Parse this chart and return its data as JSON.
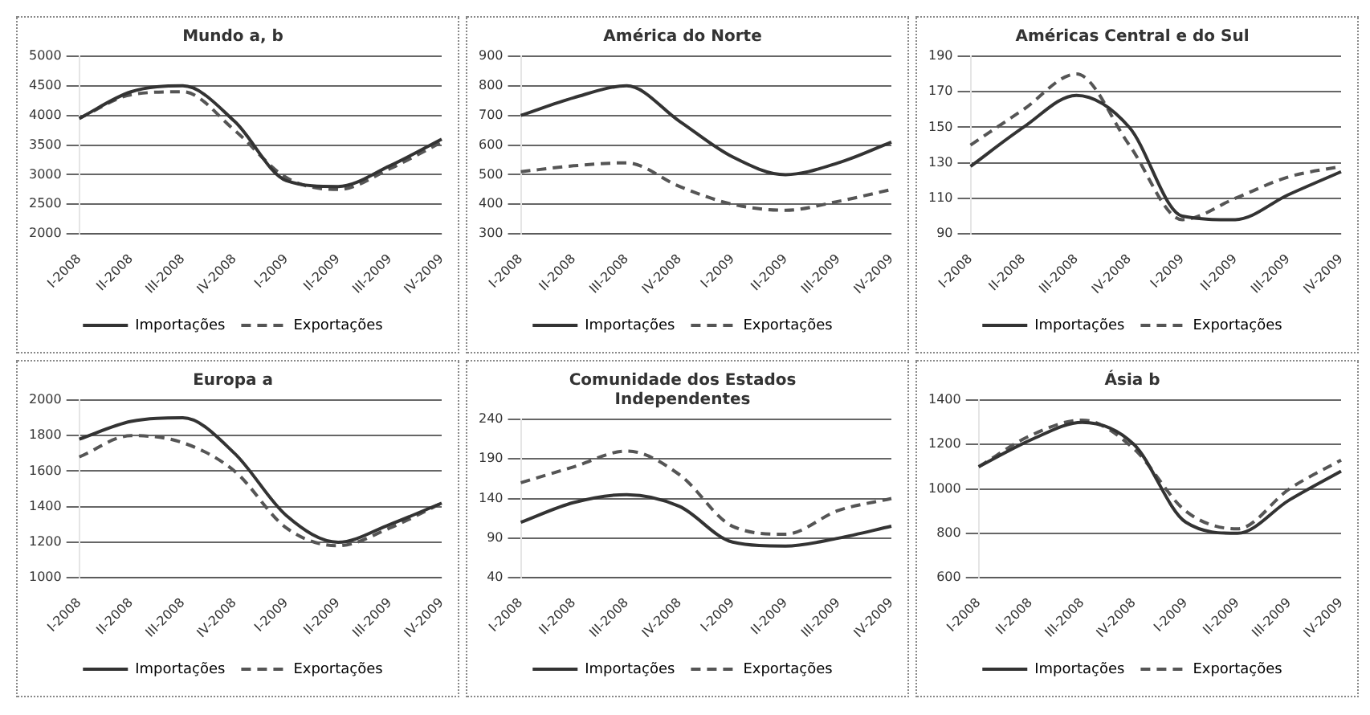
{
  "chart_data": [
    {
      "type": "line",
      "title": "Mundo a, b",
      "categories": [
        "I-2008",
        "II-2008",
        "III-2008",
        "IV-2008",
        "I-2009",
        "II-2009",
        "III-2009",
        "IV-2009"
      ],
      "series": [
        {
          "name": "Importações",
          "color": "#333333",
          "line_style": "solid",
          "values": [
            3950,
            4400,
            4500,
            3900,
            2900,
            2800,
            3150,
            3600
          ]
        },
        {
          "name": "Exportações",
          "color": "#555555",
          "line_style": "dashed",
          "values": [
            3950,
            4350,
            4400,
            3750,
            2950,
            2750,
            3100,
            3550
          ]
        }
      ],
      "ylim": [
        2000,
        5000
      ],
      "yticks": [
        2000,
        2500,
        3000,
        3500,
        4000,
        4500,
        5000
      ],
      "grid": "y",
      "legend": "bottom",
      "marker": "none"
    },
    {
      "type": "line",
      "title": "América do Norte",
      "categories": [
        "I-2008",
        "II-2008",
        "III-2008",
        "IV-2008",
        "I-2009",
        "II-2009",
        "III-2009",
        "IV-2009"
      ],
      "series": [
        {
          "name": "Importações",
          "color": "#333333",
          "line_style": "solid",
          "values": [
            700,
            760,
            800,
            680,
            560,
            500,
            540,
            610
          ]
        },
        {
          "name": "Exportações",
          "color": "#555555",
          "line_style": "dashed",
          "values": [
            510,
            530,
            540,
            460,
            400,
            380,
            410,
            450
          ]
        }
      ],
      "ylim": [
        300,
        900
      ],
      "yticks": [
        300,
        400,
        500,
        600,
        700,
        800,
        900
      ],
      "grid": "y",
      "legend": "bottom",
      "marker": "none"
    },
    {
      "type": "line",
      "title": "Américas Central e do Sul",
      "categories": [
        "I-2008",
        "II-2008",
        "III-2008",
        "IV-2008",
        "I-2009",
        "II-2009",
        "III-2009",
        "IV-2009"
      ],
      "series": [
        {
          "name": "Importações",
          "color": "#333333",
          "line_style": "solid",
          "values": [
            128,
            150,
            168,
            150,
            100,
            98,
            112,
            125
          ]
        },
        {
          "name": "Exportações",
          "color": "#555555",
          "line_style": "dashed",
          "values": [
            140,
            160,
            180,
            140,
            98,
            110,
            122,
            128
          ]
        }
      ],
      "ylim": [
        90,
        190
      ],
      "yticks": [
        90,
        110,
        130,
        150,
        170,
        190
      ],
      "grid": "y",
      "legend": "bottom",
      "marker": "none"
    },
    {
      "type": "line",
      "title": "Europa a",
      "categories": [
        "I-2008",
        "II-2008",
        "III-2008",
        "IV-2008",
        "I-2009",
        "II-2009",
        "III-2009",
        "IV-2009"
      ],
      "series": [
        {
          "name": "Importações",
          "color": "#333333",
          "line_style": "solid",
          "values": [
            1780,
            1880,
            1900,
            1700,
            1350,
            1200,
            1300,
            1420
          ]
        },
        {
          "name": "Exportações",
          "color": "#555555",
          "line_style": "dashed",
          "values": [
            1680,
            1800,
            1760,
            1600,
            1280,
            1180,
            1280,
            1420
          ]
        }
      ],
      "ylim": [
        1000,
        2000
      ],
      "yticks": [
        1000,
        1200,
        1400,
        1600,
        1800,
        2000
      ],
      "grid": "y",
      "legend": "bottom",
      "marker": "none"
    },
    {
      "type": "line",
      "title": "Comunidade dos Estados Independentes",
      "categories": [
        "I-2008",
        "II-2008",
        "III-2008",
        "IV-2008",
        "I-2009",
        "II-2009",
        "III-2009",
        "IV-2009"
      ],
      "series": [
        {
          "name": "Importações",
          "color": "#333333",
          "line_style": "solid",
          "values": [
            110,
            135,
            145,
            130,
            85,
            80,
            90,
            105
          ]
        },
        {
          "name": "Exportações",
          "color": "#555555",
          "line_style": "dashed",
          "values": [
            160,
            180,
            200,
            170,
            105,
            95,
            125,
            140
          ]
        }
      ],
      "ylim": [
        40,
        240
      ],
      "yticks": [
        40,
        90,
        140,
        190,
        240
      ],
      "grid": "y",
      "legend": "bottom",
      "marker": "none"
    },
    {
      "type": "line",
      "title": "Ásia b",
      "categories": [
        "I-2008",
        "II-2008",
        "III-2008",
        "IV-2008",
        "I-2009",
        "II-2009",
        "III-2009",
        "IV-2009"
      ],
      "series": [
        {
          "name": "Importações",
          "color": "#333333",
          "line_style": "solid",
          "values": [
            1100,
            1220,
            1300,
            1200,
            850,
            800,
            950,
            1080
          ]
        },
        {
          "name": "Exportações",
          "color": "#555555",
          "line_style": "dashed",
          "values": [
            1100,
            1240,
            1310,
            1180,
            900,
            820,
            1000,
            1130
          ]
        }
      ],
      "ylim": [
        600,
        1400
      ],
      "yticks": [
        600,
        800,
        1000,
        1200,
        1400
      ],
      "grid": "y",
      "legend": "bottom",
      "marker": "none"
    }
  ]
}
